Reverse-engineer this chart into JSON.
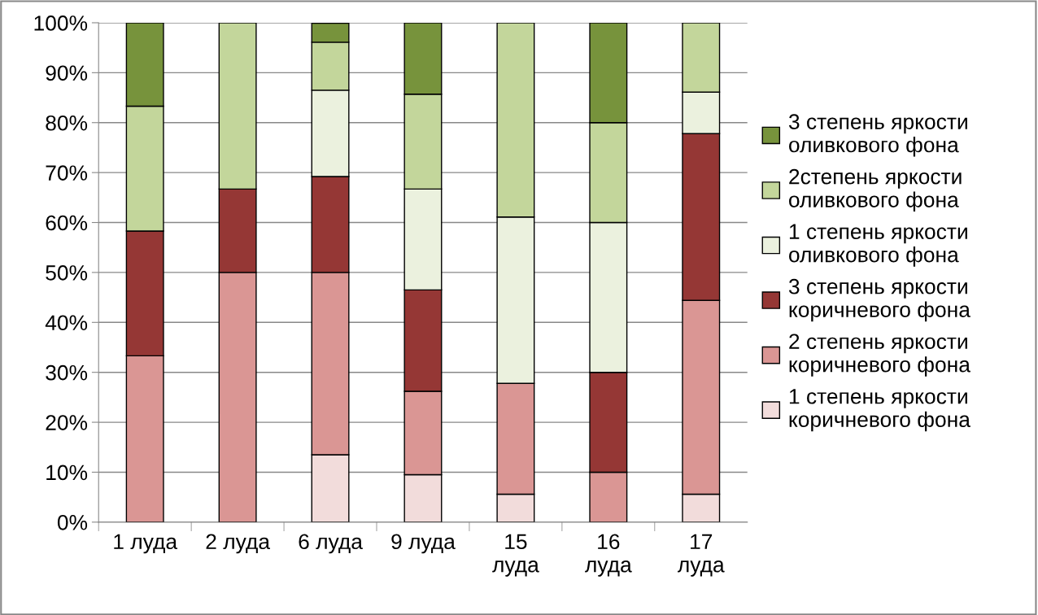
{
  "chart_data": {
    "type": "bar",
    "stacked": true,
    "categories": [
      "1 луда",
      "2 луда",
      "6 луда",
      "9 луда",
      "15\nлуда",
      "16\nлуда",
      "17\nлуда"
    ],
    "series": [
      {
        "name": "1 степень яркости\nкоричневого фона",
        "color": "#f2dcdb",
        "values": [
          0,
          0,
          13.5,
          9.5,
          5.6,
          0,
          5.6
        ]
      },
      {
        "name": "2 степень яркости\nкоричневого фона",
        "color": "#da9694",
        "values": [
          33.3,
          50,
          36.5,
          16.7,
          22.2,
          10,
          38.8
        ]
      },
      {
        "name": "3 степень яркости\nкоричневого фона",
        "color": "#953735",
        "values": [
          25,
          16.7,
          19.2,
          20.3,
          0,
          20,
          33.4
        ]
      },
      {
        "name": "1 степень яркости\nоливкового фона",
        "color": "#ebf1de",
        "values": [
          0,
          0,
          17.3,
          20.2,
          33.3,
          30,
          8.3
        ]
      },
      {
        "name": "2степень яркости\nоливкового фона",
        "color": "#c3d69b",
        "values": [
          25,
          33.3,
          9.6,
          19.0,
          38.9,
          20,
          13.9
        ]
      },
      {
        "name": "3 степень яркости\nоливкового фона",
        "color": "#77933c",
        "values": [
          16.7,
          0,
          3.8,
          14.3,
          0,
          20,
          0
        ]
      }
    ],
    "ylim": [
      0,
      100
    ],
    "yticks": [
      {
        "value": 0,
        "label": "0%"
      },
      {
        "value": 10,
        "label": "10%"
      },
      {
        "value": 20,
        "label": "20%"
      },
      {
        "value": 30,
        "label": "30%"
      },
      {
        "value": 40,
        "label": "40%"
      },
      {
        "value": 50,
        "label": "50%"
      },
      {
        "value": 60,
        "label": "60%"
      },
      {
        "value": 70,
        "label": "70%"
      },
      {
        "value": 80,
        "label": "80%"
      },
      {
        "value": 90,
        "label": "90%"
      },
      {
        "value": 100,
        "label": "100%"
      }
    ],
    "grid": "y",
    "legend": "right"
  }
}
